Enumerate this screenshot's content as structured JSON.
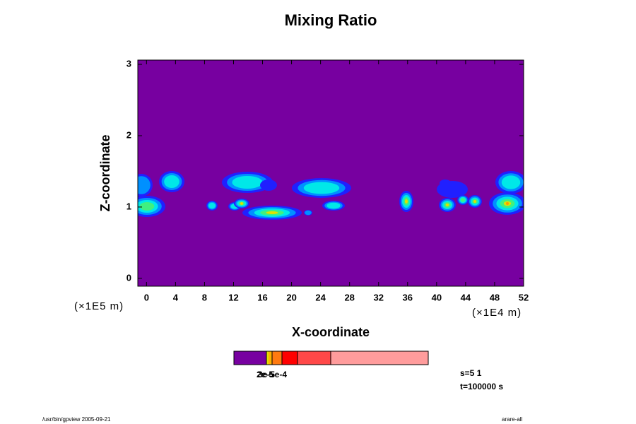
{
  "chart_data": {
    "type": "contour",
    "title": "Mixing Ratio",
    "x_label": "X-coordinate",
    "y_label": "Z-coordinate",
    "x_unit": "(×1E4 m)",
    "y_unit": "(×1E5 m)",
    "xlim": [
      -1.2,
      52
    ],
    "ylim": [
      -0.11,
      3.06
    ],
    "xticks": [
      0,
      4,
      8,
      12,
      16,
      20,
      24,
      28,
      32,
      36,
      40,
      44,
      48,
      52
    ],
    "yticks": [
      0,
      1,
      2,
      3
    ],
    "background_color": "#7700a0",
    "colorbar_labels": [
      "2e-5",
      "3e-5",
      "5e-4"
    ],
    "annotations": [
      "s=5 1",
      "t=100000 s"
    ],
    "footer_left": "/usr/bin/gpview 2005-09-21",
    "footer_right": "arare-all"
  }
}
